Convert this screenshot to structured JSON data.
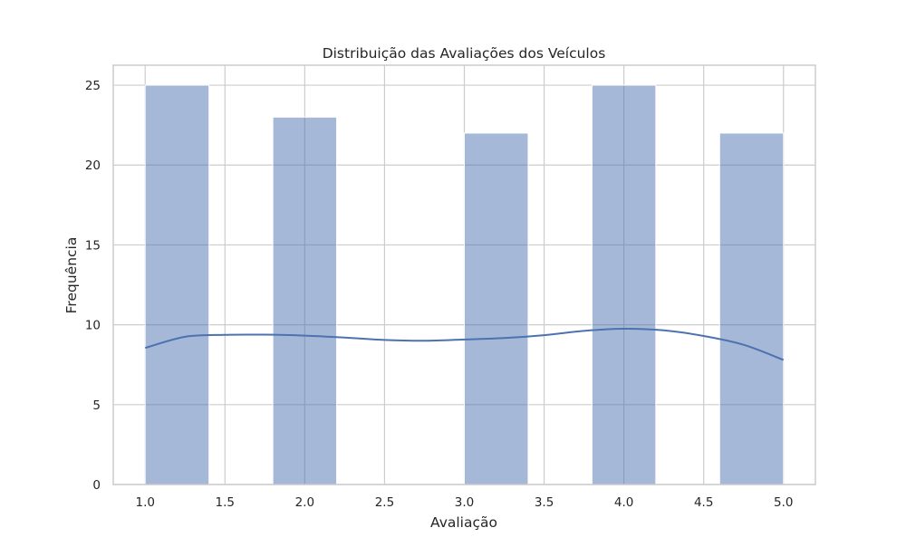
{
  "chart_data": {
    "type": "bar",
    "title": "Distribuição das Avaliações dos Veículos",
    "xlabel": "Avaliação",
    "ylabel": "Frequência",
    "xlim": [
      0.8,
      5.2
    ],
    "ylim": [
      0,
      26.25
    ],
    "xticks": [
      1.0,
      1.5,
      2.0,
      2.5,
      3.0,
      3.5,
      4.0,
      4.5,
      5.0
    ],
    "xtick_labels": [
      "1.0",
      "1.5",
      "2.0",
      "2.5",
      "3.0",
      "3.5",
      "4.0",
      "4.5",
      "5.0"
    ],
    "yticks": [
      0,
      5,
      10,
      15,
      20,
      25
    ],
    "ytick_labels": [
      "0",
      "5",
      "10",
      "15",
      "20",
      "25"
    ],
    "grid": true,
    "legend": "none",
    "bars": [
      {
        "x0": 1.0,
        "x1": 1.4,
        "value": 25
      },
      {
        "x0": 1.8,
        "x1": 2.2,
        "value": 23
      },
      {
        "x0": 3.0,
        "x1": 3.4,
        "value": 22
      },
      {
        "x0": 3.8,
        "x1": 4.2,
        "value": 25
      },
      {
        "x0": 4.6,
        "x1": 5.0,
        "value": 22
      }
    ],
    "kde": {
      "x": [
        1.0,
        1.25,
        1.5,
        1.75,
        2.0,
        2.25,
        2.5,
        2.75,
        3.0,
        3.25,
        3.5,
        3.75,
        4.0,
        4.25,
        4.5,
        4.75,
        5.0
      ],
      "y": [
        8.55,
        9.25,
        9.37,
        9.38,
        9.32,
        9.2,
        9.05,
        9.0,
        9.08,
        9.17,
        9.35,
        9.62,
        9.75,
        9.65,
        9.3,
        8.75,
        7.8
      ]
    },
    "colors": {
      "bar_fill": "#4c72b0",
      "bar_opacity": 0.5,
      "kde_line": "#4c72b0",
      "grid": "#cccccc",
      "axes_edge": "#cccccc"
    }
  }
}
